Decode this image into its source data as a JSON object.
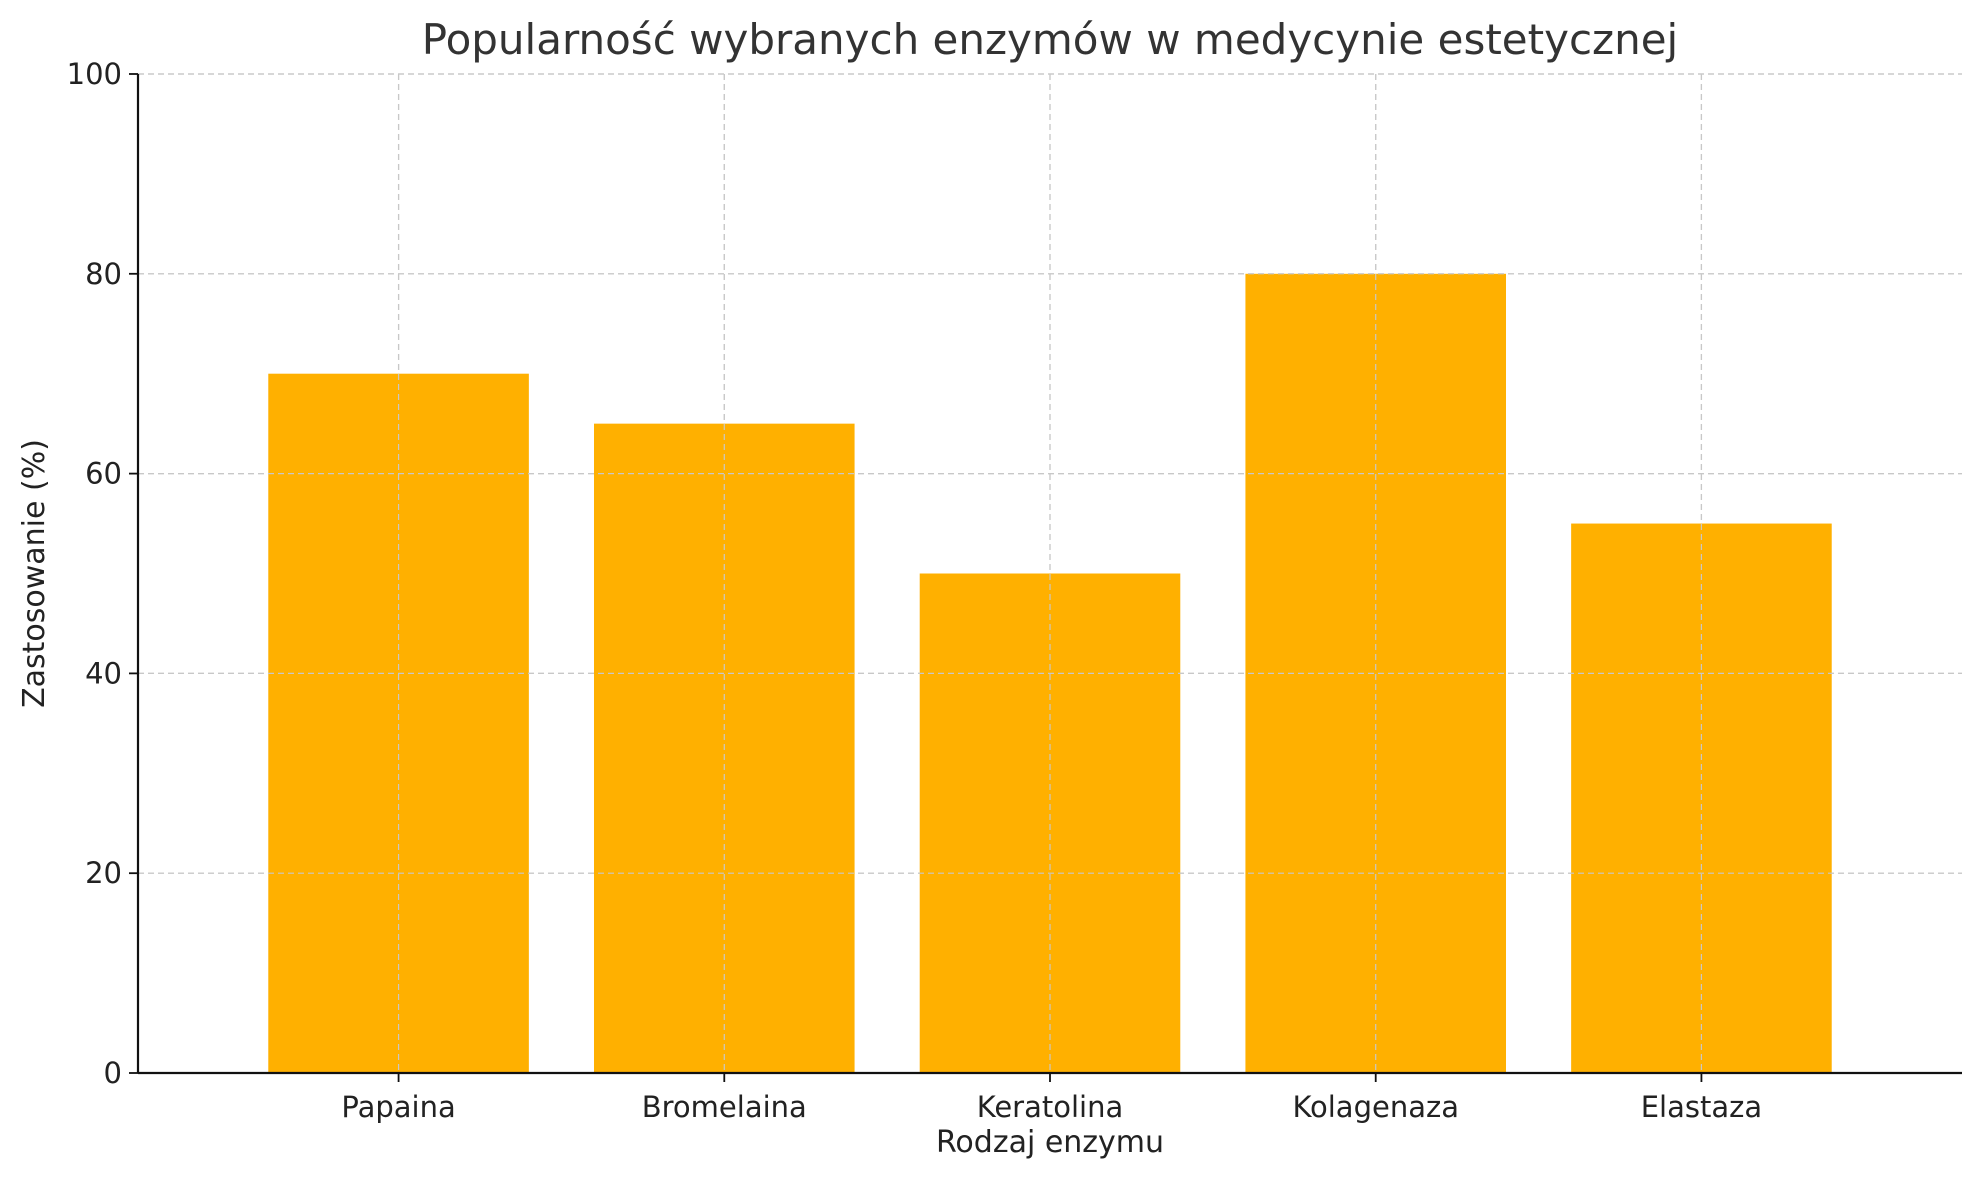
{
  "chart_data": {
    "type": "bar",
    "title": "Popularność wybranych enzymów w medycynie estetycznej",
    "xlabel": "Rodzaj enzymu",
    "ylabel": "Zastosowanie (%)",
    "categories": [
      "Papaina",
      "Bromelaina",
      "Keratolina",
      "Kolagenaza",
      "Elastaza"
    ],
    "values": [
      70,
      65,
      50,
      80,
      55
    ],
    "ylim": [
      0,
      100
    ],
    "yticks": [
      0,
      20,
      40,
      60,
      80,
      100
    ],
    "ytick_labels": [
      "0",
      "20",
      "40",
      "60",
      "80",
      "100"
    ],
    "grid": true,
    "bar_color": "#FFB000",
    "legend": "none"
  }
}
